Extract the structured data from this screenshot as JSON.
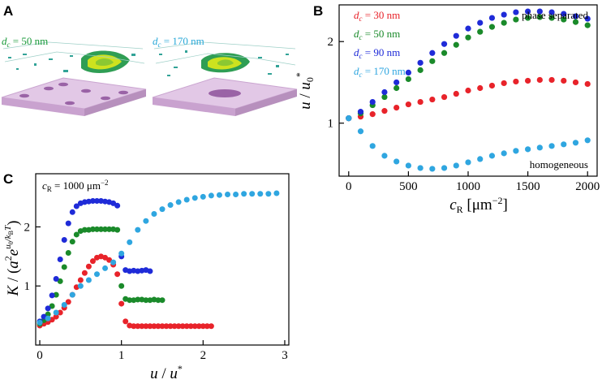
{
  "panels": {
    "A": {
      "letter": "A",
      "labels": [
        {
          "d": "d",
          "sub": "c",
          "rest": " = 50 nm",
          "color": "#1a9a3a"
        },
        {
          "d": "d",
          "sub": "c",
          "rest": " = 170 nm",
          "color": "#29a8d8"
        }
      ]
    },
    "B": {
      "letter": "B"
    },
    "C": {
      "letter": "C"
    }
  },
  "chart_data": [
    {
      "panel": "B",
      "type": "scatter",
      "x_ticks": [
        "0",
        "500",
        "1000",
        "1500",
        "2000"
      ],
      "y_ticks": [
        "1",
        "2"
      ],
      "xlim": [
        -80,
        2080
      ],
      "ylim": [
        0.35,
        2.45
      ],
      "xlabel": {
        "main": "c",
        "sub": "R",
        "unit": " [μm",
        "sup": "−2",
        "close": "]"
      },
      "ylabel": {
        "u": "u",
        "slash": " / ",
        "u0": "u",
        "sub": "0",
        "sup": "*"
      },
      "annotations": {
        "top": "phase separated",
        "bottom": "homogeneous"
      },
      "series": [
        {
          "name": "dc = 30 nm",
          "label_d": "d",
          "label_sub": "c",
          "label_rest": " = 30 nm",
          "color": "#e8232a",
          "x": [
            0,
            100,
            200,
            300,
            400,
            500,
            600,
            700,
            800,
            900,
            1000,
            1100,
            1200,
            1300,
            1400,
            1500,
            1600,
            1700,
            1800,
            1900,
            2000
          ],
          "y": [
            1.06,
            1.08,
            1.11,
            1.15,
            1.19,
            1.23,
            1.26,
            1.29,
            1.32,
            1.36,
            1.4,
            1.43,
            1.46,
            1.49,
            1.51,
            1.52,
            1.53,
            1.53,
            1.52,
            1.5,
            1.48
          ]
        },
        {
          "name": "dc = 50 nm",
          "label_d": "d",
          "label_sub": "c",
          "label_rest": " = 50 nm",
          "color": "#1a8a2a",
          "x": [
            0,
            100,
            200,
            300,
            400,
            500,
            600,
            700,
            800,
            900,
            1000,
            1100,
            1200,
            1300,
            1400,
            1500,
            1600,
            1700,
            1800,
            1900,
            2000
          ],
          "y": [
            1.06,
            1.12,
            1.22,
            1.32,
            1.43,
            1.54,
            1.65,
            1.76,
            1.86,
            1.96,
            2.05,
            2.12,
            2.18,
            2.23,
            2.27,
            2.29,
            2.3,
            2.29,
            2.27,
            2.24,
            2.2
          ]
        },
        {
          "name": "dc = 90 nm",
          "label_d": "d",
          "label_sub": "c",
          "label_rest": " = 90 nm",
          "color": "#1f2bd8",
          "x": [
            0,
            100,
            200,
            300,
            400,
            500,
            600,
            700,
            800,
            900,
            1000,
            1100,
            1200,
            1300,
            1400,
            1500,
            1600,
            1700,
            1800,
            1900,
            2000
          ],
          "y": [
            1.06,
            1.14,
            1.26,
            1.38,
            1.5,
            1.62,
            1.74,
            1.86,
            1.97,
            2.07,
            2.16,
            2.23,
            2.29,
            2.33,
            2.36,
            2.37,
            2.37,
            2.36,
            2.34,
            2.31,
            2.28
          ]
        },
        {
          "name": "dc = 170 nm",
          "label_d": "d",
          "label_sub": "c",
          "label_rest": " = 170 nm",
          "color": "#2fa6e0",
          "x": [
            0,
            100,
            200,
            300,
            400,
            500,
            600,
            700,
            800,
            900,
            1000,
            1100,
            1200,
            1300,
            1400,
            1500,
            1600,
            1700,
            1800,
            1900,
            2000
          ],
          "y": [
            1.06,
            0.9,
            0.72,
            0.6,
            0.53,
            0.48,
            0.45,
            0.44,
            0.45,
            0.48,
            0.52,
            0.56,
            0.6,
            0.63,
            0.66,
            0.68,
            0.7,
            0.72,
            0.74,
            0.76,
            0.79
          ]
        }
      ]
    },
    {
      "panel": "C",
      "type": "scatter",
      "x_ticks": [
        "0",
        "1",
        "2",
        "3"
      ],
      "y_ticks": [
        "1",
        "2"
      ],
      "xlim": [
        -0.05,
        3.05
      ],
      "ylim": [
        0,
        2.9
      ],
      "annotation": {
        "c": "c",
        "sub": "R",
        "rest": " = 1000  μm",
        "sup": "−2"
      },
      "xlabel": {
        "u": "u",
        "slash": " / ",
        "ustar": "u",
        "sup": "*"
      },
      "ylabel": {
        "K": "K",
        "mid": " / (",
        "a": "a",
        "two": "2",
        "e": "e",
        "expo": "u",
        "expo_sub": "0",
        "expo_rest": "/k",
        "kb_sub": "B",
        "T": "T",
        "close": ")"
      },
      "series": [
        {
          "name": "dc = 30 nm",
          "color": "#e8232a",
          "x": [
            0,
            0.05,
            0.1,
            0.15,
            0.2,
            0.25,
            0.3,
            0.35,
            0.4,
            0.45,
            0.5,
            0.55,
            0.6,
            0.65,
            0.7,
            0.75,
            0.8,
            0.85,
            0.9,
            0.95,
            1.0,
            1.05,
            1.1,
            1.15,
            1.2,
            1.25,
            1.3,
            1.35,
            1.4,
            1.45,
            1.5,
            1.55,
            1.6,
            1.65,
            1.7,
            1.75,
            1.8,
            1.85,
            1.9,
            1.95,
            2.0,
            2.05,
            2.1
          ],
          "y": [
            0.33,
            0.36,
            0.39,
            0.43,
            0.48,
            0.55,
            0.63,
            0.73,
            0.85,
            0.98,
            1.1,
            1.22,
            1.33,
            1.42,
            1.48,
            1.5,
            1.48,
            1.44,
            1.36,
            1.2,
            0.7,
            0.4,
            0.33,
            0.32,
            0.32,
            0.32,
            0.32,
            0.32,
            0.32,
            0.32,
            0.32,
            0.32,
            0.32,
            0.32,
            0.32,
            0.32,
            0.32,
            0.32,
            0.32,
            0.32,
            0.32,
            0.32,
            0.32
          ]
        },
        {
          "name": "dc = 50 nm",
          "color": "#1a8a2a",
          "x": [
            0,
            0.05,
            0.1,
            0.15,
            0.2,
            0.25,
            0.3,
            0.35,
            0.4,
            0.45,
            0.5,
            0.55,
            0.6,
            0.65,
            0.7,
            0.75,
            0.8,
            0.85,
            0.9,
            0.95,
            1.0,
            1.05,
            1.1,
            1.15,
            1.2,
            1.25,
            1.3,
            1.35,
            1.4,
            1.45,
            1.5
          ],
          "y": [
            0.36,
            0.42,
            0.52,
            0.66,
            0.85,
            1.08,
            1.32,
            1.56,
            1.75,
            1.87,
            1.93,
            1.95,
            1.95,
            1.96,
            1.96,
            1.96,
            1.96,
            1.96,
            1.96,
            1.95,
            1.0,
            0.78,
            0.76,
            0.76,
            0.77,
            0.77,
            0.76,
            0.76,
            0.77,
            0.76,
            0.76
          ]
        },
        {
          "name": "dc = 90 nm",
          "color": "#1f2bd8",
          "x": [
            0,
            0.05,
            0.1,
            0.15,
            0.2,
            0.25,
            0.3,
            0.35,
            0.4,
            0.45,
            0.5,
            0.55,
            0.6,
            0.65,
            0.7,
            0.75,
            0.8,
            0.85,
            0.9,
            0.95,
            1.0,
            1.05,
            1.1,
            1.15,
            1.2,
            1.25,
            1.3,
            1.35
          ],
          "y": [
            0.4,
            0.48,
            0.62,
            0.84,
            1.12,
            1.45,
            1.78,
            2.06,
            2.25,
            2.35,
            2.4,
            2.42,
            2.43,
            2.44,
            2.44,
            2.44,
            2.43,
            2.42,
            2.4,
            2.36,
            1.5,
            1.27,
            1.25,
            1.26,
            1.25,
            1.26,
            1.27,
            1.25
          ]
        },
        {
          "name": "dc = 170 nm",
          "color": "#2fa6e0",
          "x": [
            0,
            0.1,
            0.2,
            0.3,
            0.4,
            0.5,
            0.6,
            0.7,
            0.8,
            0.9,
            1.0,
            1.1,
            1.2,
            1.3,
            1.4,
            1.5,
            1.6,
            1.7,
            1.8,
            1.9,
            2.0,
            2.1,
            2.2,
            2.3,
            2.4,
            2.5,
            2.6,
            2.7,
            2.8,
            2.9
          ],
          "y": [
            0.38,
            0.45,
            0.55,
            0.68,
            0.85,
            1.0,
            1.1,
            1.2,
            1.3,
            1.4,
            1.55,
            1.74,
            1.95,
            2.1,
            2.22,
            2.3,
            2.37,
            2.42,
            2.46,
            2.49,
            2.51,
            2.53,
            2.54,
            2.55,
            2.55,
            2.56,
            2.56,
            2.56,
            2.56,
            2.57
          ]
        }
      ]
    }
  ]
}
